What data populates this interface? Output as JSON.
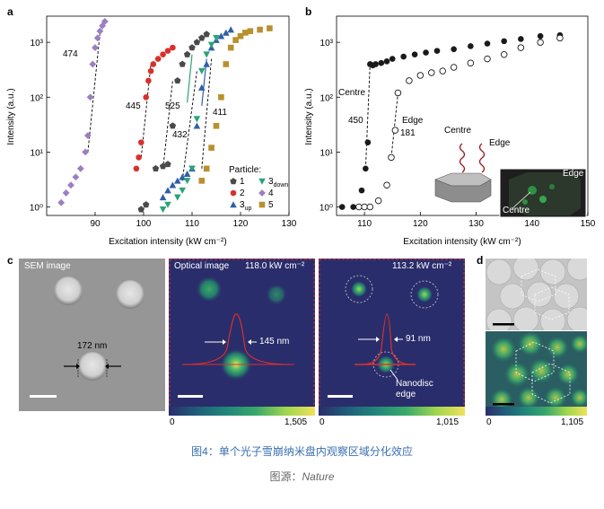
{
  "panels": {
    "a": {
      "label": "a"
    },
    "b": {
      "label": "b"
    },
    "c": {
      "label": "c"
    },
    "d": {
      "label": "d"
    }
  },
  "chart_data": [
    {
      "type": "scatter",
      "panel": "a",
      "xlabel": "Excitation intensity (kW cm⁻²)",
      "ylabel": "Intensity (a.u.)",
      "xlim": [
        80,
        130
      ],
      "ylim_log": [
        0.7,
        3000
      ],
      "log_y": true,
      "x_ticks": [
        "90",
        "100",
        "110",
        "120",
        "130"
      ],
      "y_ticks": [
        "10⁰",
        "10¹",
        "10²",
        "10³"
      ],
      "legend_title": "Particle:",
      "legend_position": "bottom-right",
      "series": [
        {
          "name": "1",
          "color": "#4a4a4a",
          "marker": "pentagon",
          "x": [
            99.5,
            100.5,
            102.5,
            104,
            105,
            106,
            107,
            108,
            109,
            110,
            111,
            112,
            113
          ],
          "y": [
            0.9,
            1.1,
            5,
            5.5,
            6,
            30,
            200,
            400,
            600,
            800,
            1000,
            1200,
            1400
          ]
        },
        {
          "name": "2",
          "color": "#d9302b",
          "marker": "circle",
          "x": [
            98.5,
            99,
            99.5,
            100.5,
            101,
            101.5,
            102,
            103,
            104,
            105,
            106
          ],
          "y": [
            5,
            8,
            15,
            100,
            200,
            300,
            400,
            500,
            600,
            700,
            800
          ]
        },
        {
          "name": "3up",
          "color": "#2f5fa8",
          "marker": "triangle-up",
          "x": [
            104,
            105,
            106,
            107,
            108,
            109,
            110,
            111,
            112,
            113,
            114,
            115,
            116,
            117,
            118
          ],
          "y": [
            1.5,
            2,
            2.5,
            3,
            3.5,
            4,
            5,
            30,
            150,
            400,
            800,
            1100,
            1300,
            1500,
            1700
          ]
        },
        {
          "name": "3down",
          "color": "#2aa37a",
          "marker": "triangle-down",
          "x": [
            104,
            105,
            107,
            108,
            109,
            110,
            111,
            112,
            113,
            114,
            115
          ],
          "y": [
            0.9,
            1.1,
            1.5,
            2,
            3,
            5,
            40,
            300,
            600,
            900,
            1200
          ]
        },
        {
          "name": "4",
          "color": "#9b7fc0",
          "marker": "diamond",
          "x": [
            83,
            84,
            85,
            86,
            87,
            88,
            88.5,
            89,
            89.5,
            90,
            90.5,
            91,
            91.5,
            92
          ],
          "y": [
            1.2,
            1.8,
            2.5,
            3.5,
            5,
            10,
            20,
            100,
            400,
            800,
            1200,
            1600,
            2000,
            2400
          ]
        },
        {
          "name": "5",
          "color": "#b8902e",
          "marker": "square",
          "x": [
            112,
            113,
            114,
            115,
            116,
            117,
            118,
            119,
            120,
            121,
            122,
            124,
            126
          ],
          "y": [
            3,
            5,
            12,
            30,
            100,
            400,
            800,
            1100,
            1300,
            1500,
            1600,
            1700,
            1800
          ]
        }
      ],
      "annotations": [
        "474",
        "445",
        "525",
        "432",
        "411"
      ]
    },
    {
      "type": "scatter",
      "panel": "b",
      "xlabel": "Excitation intensity (kW cm⁻²)",
      "ylabel": "Intensity (a.u.)",
      "xlim": [
        105,
        150
      ],
      "log_y": true,
      "x_ticks": [
        "110",
        "120",
        "130",
        "140",
        "150"
      ],
      "y_ticks": [
        "10⁰",
        "10¹",
        "10²",
        "10³"
      ],
      "series": [
        {
          "name": "Centre",
          "color": "#1a1a1a",
          "marker": "filled-circle",
          "x": [
            106,
            108,
            109.5,
            110.2,
            110.6,
            111,
            111.5,
            112,
            113,
            114,
            115,
            117,
            119,
            121,
            123,
            126,
            129,
            132,
            135,
            138,
            141.5,
            145
          ],
          "y": [
            1,
            1,
            2,
            5,
            15,
            400,
            380,
            400,
            420,
            450,
            500,
            550,
            600,
            650,
            700,
            750,
            850,
            950,
            1050,
            1150,
            1300,
            1350
          ]
        },
        {
          "name": "Edge",
          "color": "#1a1a1a",
          "marker": "open-circle",
          "x": [
            109,
            110,
            111,
            112.5,
            114,
            114.8,
            115.5,
            116,
            118,
            120,
            122,
            124,
            126,
            129,
            132,
            135,
            138,
            141.5,
            145
          ],
          "y": [
            1,
            1,
            1,
            1.3,
            2.5,
            8,
            25,
            120,
            200,
            250,
            280,
            300,
            350,
            420,
            500,
            600,
            800,
            1000,
            1200
          ]
        }
      ],
      "annotations": [
        "Centre",
        "450",
        "Edge",
        "181"
      ],
      "inset_labels": [
        "Centre",
        "Edge",
        "Edge",
        "Centre"
      ]
    }
  ],
  "panel_c": {
    "sem_title": "SEM image",
    "sem_size_label": "172 nm",
    "optical_title": "Optical image",
    "optical_intensity": "118.0 kW cm⁻²",
    "optical_fwhm": "145 nm",
    "cbar1_min": "0",
    "cbar1_max": "1,505",
    "right_intensity": "113.2 kW cm⁻²",
    "right_fwhm": "91 nm",
    "right_note_line1": "Nanodisc",
    "right_note_line2": "edge",
    "cbar2_min": "0",
    "cbar2_max": "1,015"
  },
  "panel_d": {
    "cbar_min": "0",
    "cbar_max": "1,105"
  },
  "caption": "图4：单个光子雪崩纳米盘内观察区域分化效应",
  "source_prefix": "图源：",
  "source_name": "Nature"
}
